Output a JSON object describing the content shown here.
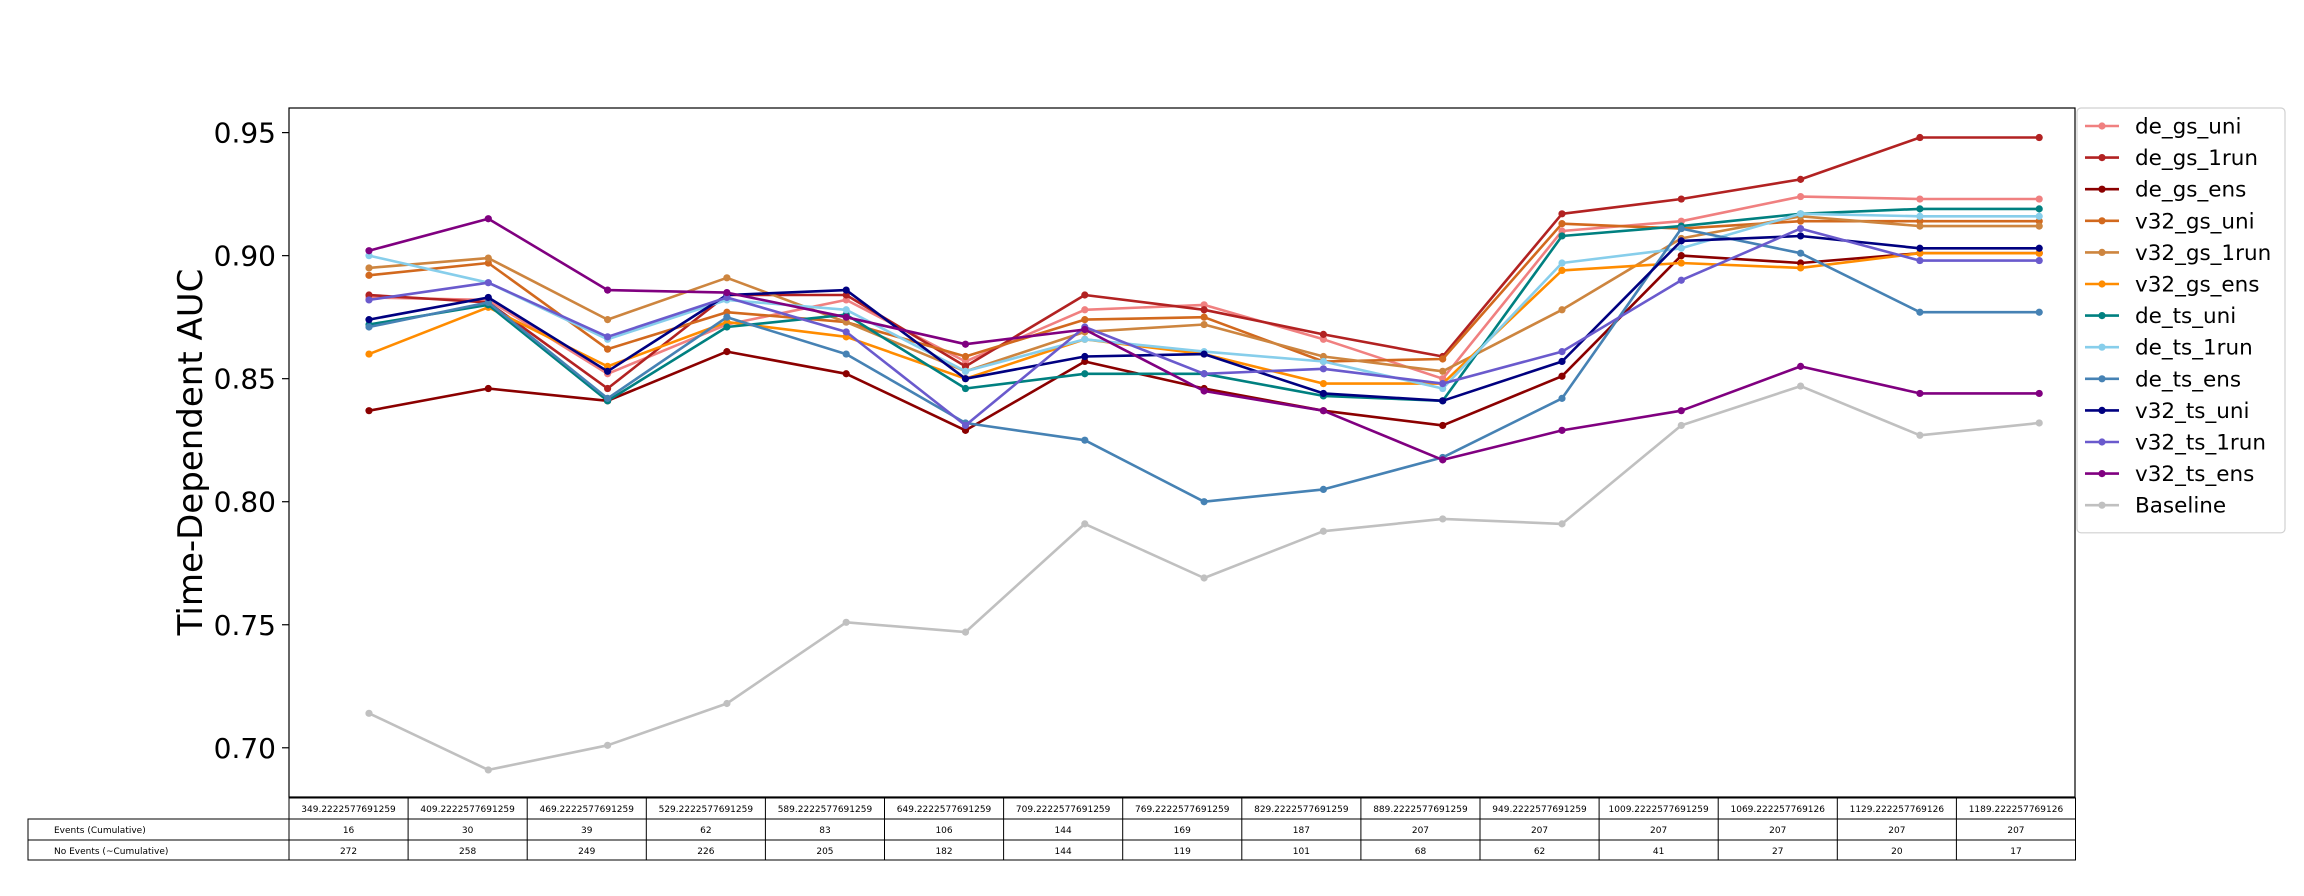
{
  "chart_data": {
    "type": "line",
    "ylabel": "Time-Dependent AUC",
    "xlabel": "",
    "title": "",
    "ylim": [
      0.68,
      0.96
    ],
    "yticks": [
      "0.70",
      "0.75",
      "0.80",
      "0.85",
      "0.90",
      "0.95"
    ],
    "grid": false,
    "legend_position": "outside upper right",
    "x": [
      "349.2222577691259",
      "409.2222577691259",
      "469.2222577691259",
      "529.2222577691259",
      "589.2222577691259",
      "649.2222577691259",
      "709.2222577691259",
      "769.2222577691259",
      "829.2222577691259",
      "889.2222577691259",
      "949.2222577691259",
      "1009.2222577691259",
      "1069.222257769126",
      "1129.222257769126",
      "1189.222257769126"
    ],
    "series": [
      {
        "name": "de_gs_uni",
        "color": "#f08080",
        "values": [
          0.883,
          0.882,
          0.852,
          0.872,
          0.882,
          0.857,
          0.878,
          0.88,
          0.866,
          0.85,
          0.91,
          0.914,
          0.924,
          0.923,
          0.923
        ]
      },
      {
        "name": "de_gs_1run",
        "color": "#b22222",
        "values": [
          0.884,
          0.881,
          0.846,
          0.884,
          0.884,
          0.855,
          0.884,
          0.878,
          0.868,
          0.859,
          0.917,
          0.923,
          0.931,
          0.948,
          0.948
        ]
      },
      {
        "name": "de_gs_ens",
        "color": "#8b0000",
        "values": [
          0.837,
          0.846,
          0.841,
          0.861,
          0.852,
          0.829,
          0.857,
          0.846,
          0.837,
          0.831,
          0.851,
          0.9,
          0.897,
          0.901,
          0.901
        ]
      },
      {
        "name": "v32_gs_uni",
        "color": "#d2691e",
        "values": [
          0.892,
          0.897,
          0.862,
          0.877,
          0.873,
          0.859,
          0.874,
          0.875,
          0.857,
          0.858,
          0.913,
          0.911,
          0.914,
          0.914,
          0.914
        ]
      },
      {
        "name": "v32_gs_1run",
        "color": "#cd853f",
        "values": [
          0.895,
          0.899,
          0.874,
          0.891,
          0.873,
          0.853,
          0.869,
          0.872,
          0.859,
          0.853,
          0.878,
          0.907,
          0.916,
          0.912,
          0.912
        ]
      },
      {
        "name": "v32_gs_ens",
        "color": "#ff8c00",
        "values": [
          0.86,
          0.879,
          0.855,
          0.873,
          0.867,
          0.85,
          0.866,
          0.86,
          0.848,
          0.848,
          0.894,
          0.897,
          0.895,
          0.901,
          0.901
        ]
      },
      {
        "name": "de_ts_uni",
        "color": "#008080",
        "values": [
          0.872,
          0.88,
          0.841,
          0.871,
          0.876,
          0.846,
          0.852,
          0.852,
          0.843,
          0.841,
          0.908,
          0.912,
          0.917,
          0.919,
          0.919
        ]
      },
      {
        "name": "de_ts_1run",
        "color": "#87ceeb",
        "values": [
          0.9,
          0.889,
          0.866,
          0.882,
          0.878,
          0.853,
          0.866,
          0.861,
          0.857,
          0.846,
          0.897,
          0.903,
          0.917,
          0.916,
          0.916
        ]
      },
      {
        "name": "de_ts_ens",
        "color": "#4682b4",
        "values": [
          0.871,
          0.881,
          0.842,
          0.875,
          0.86,
          0.832,
          0.825,
          0.8,
          0.805,
          0.818,
          0.842,
          0.911,
          0.901,
          0.877,
          0.877
        ]
      },
      {
        "name": "v32_ts_uni",
        "color": "#000080",
        "values": [
          0.874,
          0.883,
          0.853,
          0.884,
          0.886,
          0.85,
          0.859,
          0.86,
          0.844,
          0.841,
          0.857,
          0.906,
          0.908,
          0.903,
          0.903
        ]
      },
      {
        "name": "v32_ts_1run",
        "color": "#6a5acd",
        "values": [
          0.882,
          0.889,
          0.867,
          0.883,
          0.869,
          0.831,
          0.871,
          0.852,
          0.854,
          0.848,
          0.861,
          0.89,
          0.911,
          0.898,
          0.898
        ]
      },
      {
        "name": "v32_ts_ens",
        "color": "#800080",
        "values": [
          0.902,
          0.915,
          0.886,
          0.885,
          0.875,
          0.864,
          0.87,
          0.845,
          0.837,
          0.817,
          0.829,
          0.837,
          0.855,
          0.844,
          0.844
        ]
      },
      {
        "name": "Baseline",
        "color": "#c0c0c0",
        "values": [
          0.714,
          0.691,
          0.701,
          0.718,
          0.751,
          0.747,
          0.791,
          0.769,
          0.788,
          0.793,
          0.791,
          0.831,
          0.847,
          0.827,
          0.832
        ]
      }
    ],
    "table": {
      "header": [
        "349.2222577691259",
        "409.2222577691259",
        "469.2222577691259",
        "529.2222577691259",
        "589.2222577691259",
        "649.2222577691259",
        "709.2222577691259",
        "769.2222577691259",
        "829.2222577691259",
        "889.2222577691259",
        "949.2222577691259",
        "1009.2222577691259",
        "1069.222257769126",
        "1129.222257769126",
        "1189.222257769126"
      ],
      "rows": [
        {
          "label": "Events (Cumulative)",
          "values": [
            "16",
            "30",
            "39",
            "62",
            "83",
            "106",
            "144",
            "169",
            "187",
            "207",
            "207",
            "207",
            "207",
            "207",
            "207"
          ]
        },
        {
          "label": "No Events (~Cumulative)",
          "values": [
            "272",
            "258",
            "249",
            "226",
            "205",
            "182",
            "144",
            "119",
            "101",
            "68",
            "62",
            "41",
            "27",
            "20",
            "17"
          ]
        }
      ]
    }
  }
}
